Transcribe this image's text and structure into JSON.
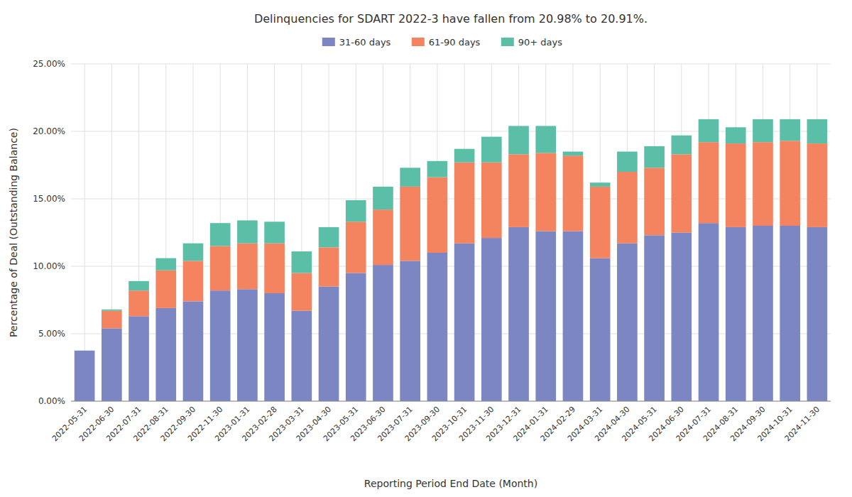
{
  "chart_data": {
    "type": "bar",
    "stacked": true,
    "title": "Delinquencies for SDART 2022-3 have fallen from 20.98% to 20.91%.",
    "xlabel": "Reporting Period End Date (Month)",
    "ylabel": "Percentage of Deal (Outstanding Balance)",
    "categories": [
      "2022-05-31",
      "2022-06-30",
      "2022-07-31",
      "2022-08-31",
      "2022-09-30",
      "2022-11-30",
      "2023-01-31",
      "2023-02-28",
      "2023-03-31",
      "2023-04-30",
      "2023-05-31",
      "2023-06-30",
      "2023-07-31",
      "2023-09-30",
      "2023-10-31",
      "2023-11-30",
      "2023-12-31",
      "2024-01-31",
      "2024-02-29",
      "2024-03-31",
      "2024-04-30",
      "2024-05-31",
      "2024-06-30",
      "2024-07-31",
      "2024-08-31",
      "2024-09-30",
      "2024-10-31",
      "2024-11-30"
    ],
    "series": [
      {
        "name": "31-60 days",
        "color": "#7b86c2",
        "values": [
          0.0375,
          0.054,
          0.063,
          0.069,
          0.074,
          0.082,
          0.083,
          0.08,
          0.067,
          0.085,
          0.095,
          0.101,
          0.104,
          0.11,
          0.117,
          0.121,
          0.129,
          0.126,
          0.126,
          0.106,
          0.117,
          0.123,
          0.125,
          0.132,
          0.129,
          0.13,
          0.13,
          0.129
        ]
      },
      {
        "name": "61-90 days",
        "color": "#f4845f",
        "values": [
          0.0,
          0.013,
          0.019,
          0.028,
          0.03,
          0.033,
          0.034,
          0.037,
          0.028,
          0.029,
          0.038,
          0.041,
          0.055,
          0.056,
          0.06,
          0.056,
          0.054,
          0.058,
          0.056,
          0.053,
          0.053,
          0.05,
          0.058,
          0.06,
          0.062,
          0.062,
          0.063,
          0.062
        ]
      },
      {
        "name": "90+ days",
        "color": "#5bbfa8",
        "values": [
          0.0,
          0.001,
          0.007,
          0.009,
          0.013,
          0.017,
          0.017,
          0.016,
          0.016,
          0.015,
          0.016,
          0.017,
          0.014,
          0.012,
          0.01,
          0.019,
          0.021,
          0.02,
          0.003,
          0.003,
          0.015,
          0.016,
          0.014,
          0.017,
          0.012,
          0.017,
          0.016,
          0.018
        ]
      }
    ],
    "ylim": [
      0,
      0.25
    ],
    "yticks": [
      {
        "value": 0,
        "label": "0.00%"
      },
      {
        "value": 0.05,
        "label": "5.00%"
      },
      {
        "value": 0.1,
        "label": "10.00%"
      },
      {
        "value": 0.15,
        "label": "15.00%"
      },
      {
        "value": 0.2,
        "label": "20.00%"
      },
      {
        "value": 0.25,
        "label": "25.00%"
      }
    ],
    "grid": true,
    "legend": "top"
  }
}
